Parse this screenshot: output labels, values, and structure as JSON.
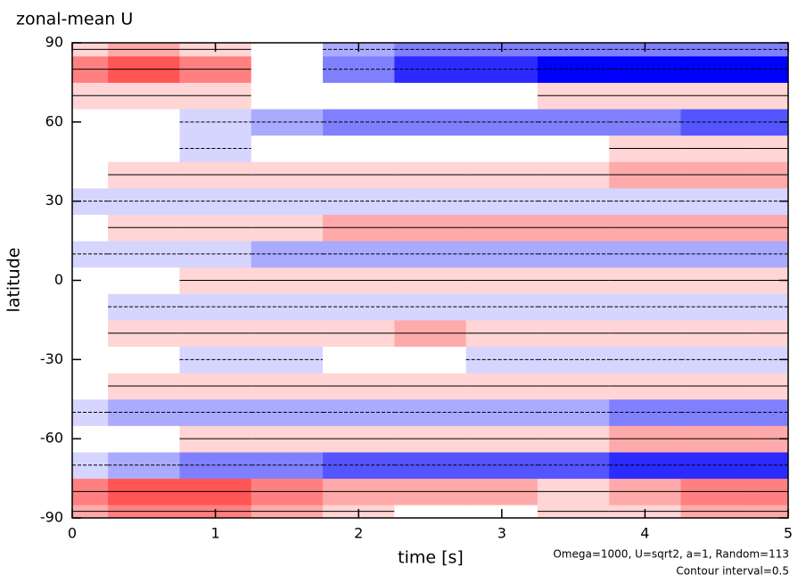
{
  "chart_data": {
    "type": "contour",
    "title": "zonal-mean U",
    "x_label": "time [s]",
    "y_label": "latitude",
    "annotations": [
      "Omega=1000, U=sqrt2, a=1, Random=113",
      "Contour interval=0.5"
    ],
    "x": [
      0,
      0.5,
      1,
      1.5,
      2,
      2.5,
      3,
      3.5,
      4,
      4.5,
      5
    ],
    "y": [
      -90,
      -80,
      -70,
      -60,
      -50,
      -40,
      -30,
      -20,
      -10,
      0,
      10,
      20,
      30,
      40,
      50,
      60,
      70,
      80,
      90
    ],
    "z": [
      [
        2,
        3,
        3,
        2,
        1,
        0,
        0,
        1,
        1,
        2,
        2
      ],
      [
        3,
        4,
        4,
        3,
        2,
        2,
        2,
        1,
        2,
        3,
        3
      ],
      [
        -1,
        -2,
        -3,
        -3,
        -4,
        -4,
        -4,
        -4,
        -5,
        -5,
        -5
      ],
      [
        0,
        0,
        1,
        1,
        1,
        1,
        1,
        1,
        2,
        2,
        2
      ],
      [
        -1,
        -2,
        -2,
        -2,
        -2,
        -2,
        -2,
        -2,
        -3,
        -3,
        -3
      ],
      [
        0,
        1,
        1,
        1,
        1,
        1,
        1,
        1,
        1,
        1,
        1
      ],
      [
        0,
        0,
        -1,
        -1,
        0,
        0,
        -1,
        -1,
        -1,
        -1,
        -1
      ],
      [
        0,
        1,
        1,
        1,
        1,
        2,
        1,
        1,
        1,
        1,
        1
      ],
      [
        0,
        -1,
        -1,
        -1,
        -1,
        -1,
        -1,
        -1,
        -1,
        -1,
        -1
      ],
      [
        0,
        0,
        1,
        1,
        1,
        1,
        1,
        1,
        1,
        1,
        1
      ],
      [
        -1,
        -1,
        -1,
        -2,
        -2,
        -2,
        -2,
        -2,
        -2,
        -2,
        -2
      ],
      [
        0,
        1,
        1,
        1,
        2,
        2,
        2,
        2,
        2,
        2,
        2
      ],
      [
        -1,
        -1,
        -1,
        -1,
        -1,
        -1,
        -1,
        -1,
        -1,
        -1,
        -1
      ],
      [
        0,
        1,
        1,
        1,
        1,
        1,
        1,
        1,
        2,
        2,
        2
      ],
      [
        0,
        0,
        -1,
        0,
        0,
        0,
        0,
        0,
        1,
        1,
        1
      ],
      [
        0,
        0,
        -1,
        -2,
        -3,
        -3,
        -3,
        -3,
        -3,
        -4,
        -4
      ],
      [
        1,
        1,
        1,
        0,
        0,
        0,
        0,
        1,
        1,
        1,
        1
      ],
      [
        3,
        4,
        3,
        0,
        -3,
        -5,
        -5,
        -6,
        -6,
        -6,
        -6
      ],
      [
        1,
        2,
        1,
        0,
        -2,
        -3,
        -3,
        -3,
        -3,
        -3,
        -3
      ]
    ],
    "positive_color": "#ff0000",
    "negative_color": "#0000ff",
    "xlim": [
      0,
      5
    ],
    "xticks": [
      0,
      1,
      2,
      3,
      4,
      5
    ],
    "ylim": [
      -90,
      90
    ],
    "yticks": [
      -90,
      -60,
      -30,
      0,
      30,
      60,
      90
    ]
  }
}
